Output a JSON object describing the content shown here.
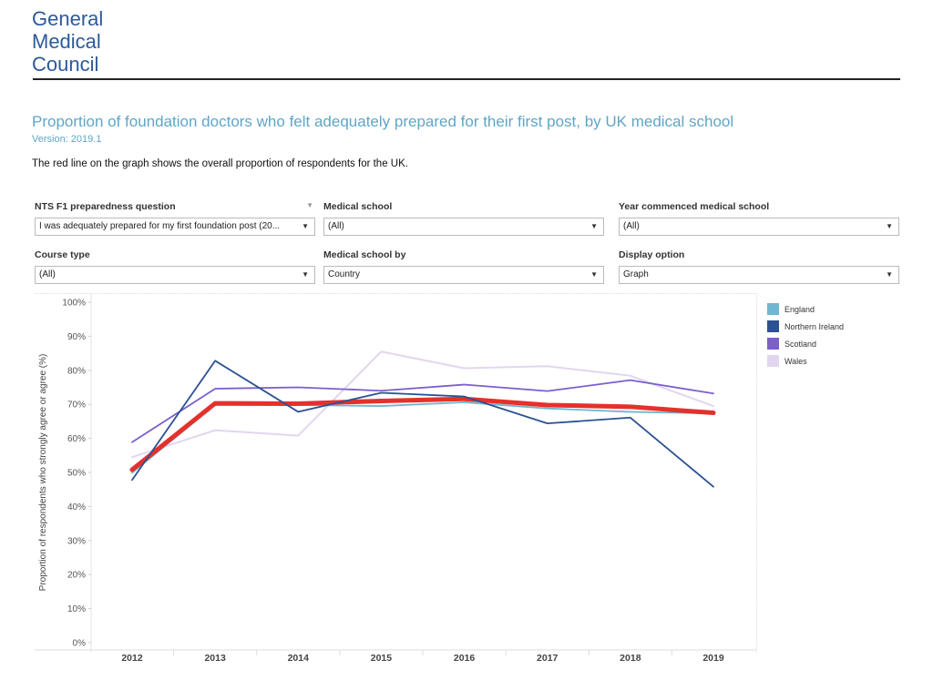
{
  "logo": {
    "lines": [
      "General",
      "Medical",
      "Council"
    ]
  },
  "header": {
    "title": "Proportion of foundation doctors who felt adequately prepared for their first post, by UK medical school",
    "version": "Version: 2019.1",
    "note": "The red line on the graph shows the overall proportion of respondents for the UK."
  },
  "filters": [
    {
      "label": "NTS F1 preparedness question",
      "value": "I was adequately prepared for my first foundation post (20..."
    },
    {
      "label": "Medical school",
      "value": "(All)"
    },
    {
      "label": "Year commenced medical school",
      "value": "(All)"
    },
    {
      "label": "Course type",
      "value": "(All)"
    },
    {
      "label": "Medical school by",
      "value": "Country"
    },
    {
      "label": "Display option",
      "value": "Graph"
    }
  ],
  "chart_data": {
    "type": "line",
    "title": "",
    "xlabel": "",
    "ylabel": "Proportion of respondents who strongly agree or agree (%)",
    "ylim": [
      0,
      100
    ],
    "yticks": [
      "0%",
      "10%",
      "20%",
      "30%",
      "40%",
      "50%",
      "60%",
      "70%",
      "80%",
      "90%",
      "100%"
    ],
    "categories": [
      "2012",
      "2013",
      "2014",
      "2015",
      "2016",
      "2017",
      "2018",
      "2019"
    ],
    "grid": false,
    "legend_position": "right",
    "series": [
      {
        "name": "England",
        "color": "#6fb7d1",
        "values": [
          49.9,
          69.8,
          69.8,
          69.5,
          70.6,
          68.8,
          67.8,
          67.3
        ]
      },
      {
        "name": "Northern Ireland",
        "color": "#2c5192",
        "values": [
          47.8,
          82.8,
          67.8,
          73.4,
          72.3,
          64.4,
          66.1,
          45.8
        ]
      },
      {
        "name": "Scotland",
        "color": "#7b5fcc",
        "values": [
          58.9,
          74.6,
          75.0,
          74.0,
          75.8,
          73.9,
          77.1,
          73.2
        ]
      },
      {
        "name": "Wales",
        "color": "#e2d6ef",
        "values": [
          54.5,
          62.4,
          60.8,
          85.5,
          80.6,
          81.2,
          78.4,
          69.5
        ]
      },
      {
        "color": "#e4312b",
        "values": [
          50.8,
          70.3,
          70.2,
          71.0,
          71.6,
          69.8,
          69.3,
          67.5
        ]
      }
    ]
  }
}
